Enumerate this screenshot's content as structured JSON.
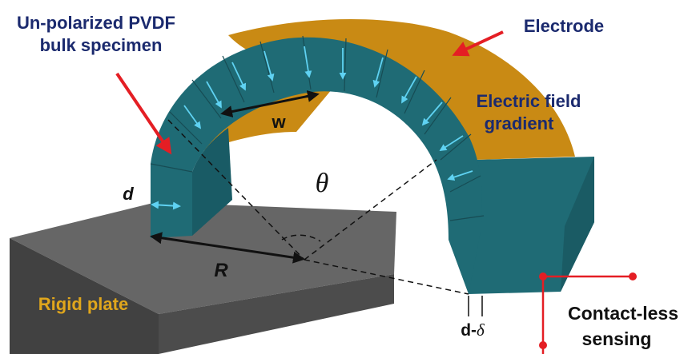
{
  "labels": {
    "specimen_line1": "Un-polarized PVDF",
    "specimen_line2": "bulk specimen",
    "electrode": "Electrode",
    "field_line1": "Electric field",
    "field_line2": "gradient",
    "width": "w",
    "thickness": "d",
    "angle": "θ",
    "radius": "R",
    "plate": "Rigid plate",
    "gap_d": "d-",
    "gap_delta": "δ",
    "sensing_line1": "Contact-less",
    "sensing_line2": "sensing"
  },
  "colors": {
    "specimen_teal": "#1d6670",
    "specimen_dark": "#164e57",
    "electrode_gold": "#c98a14",
    "electrode_dark": "#a06c0c",
    "plate_top": "#636363",
    "plate_front": "#3f3f3f",
    "plate_side": "#545454",
    "label_navy": "#1b2a6e",
    "label_gold": "#e0a61c",
    "pointer_red": "#e41e24",
    "field_arrow": "#5fd2f2"
  }
}
